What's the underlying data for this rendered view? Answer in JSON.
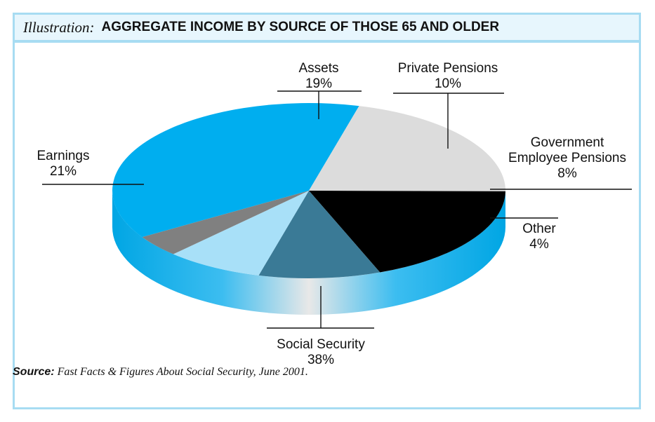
{
  "header": {
    "label": "Illustration:",
    "title": "AGGREGATE INCOME BY SOURCE OF THOSE 65 AND OLDER"
  },
  "source": {
    "label": "Source:",
    "text": " Fast Facts & Figures About Social Security, June 2001."
  },
  "chart_data": {
    "type": "pie",
    "title": "AGGREGATE INCOME BY SOURCE OF THOSE 65 AND OLDER",
    "slices": [
      {
        "label_lines": [
          "Social Security"
        ],
        "percent_label": "38%",
        "value": 38,
        "color": "#00aeef"
      },
      {
        "label_lines": [
          "Earnings"
        ],
        "percent_label": "21%",
        "value": 21,
        "color": "#dcdcdc"
      },
      {
        "label_lines": [
          "Assets"
        ],
        "percent_label": "19%",
        "value": 19,
        "color": "#000000"
      },
      {
        "label_lines": [
          "Private Pensions"
        ],
        "percent_label": "10%",
        "value": 10,
        "color": "#3a7a96"
      },
      {
        "label_lines": [
          "Government",
          "Employee Pensions"
        ],
        "percent_label": "8%",
        "value": 8,
        "color": "#a8e0f8"
      },
      {
        "label_lines": [
          "Other"
        ],
        "percent_label": "4%",
        "value": 4,
        "color": "#808080"
      }
    ]
  }
}
